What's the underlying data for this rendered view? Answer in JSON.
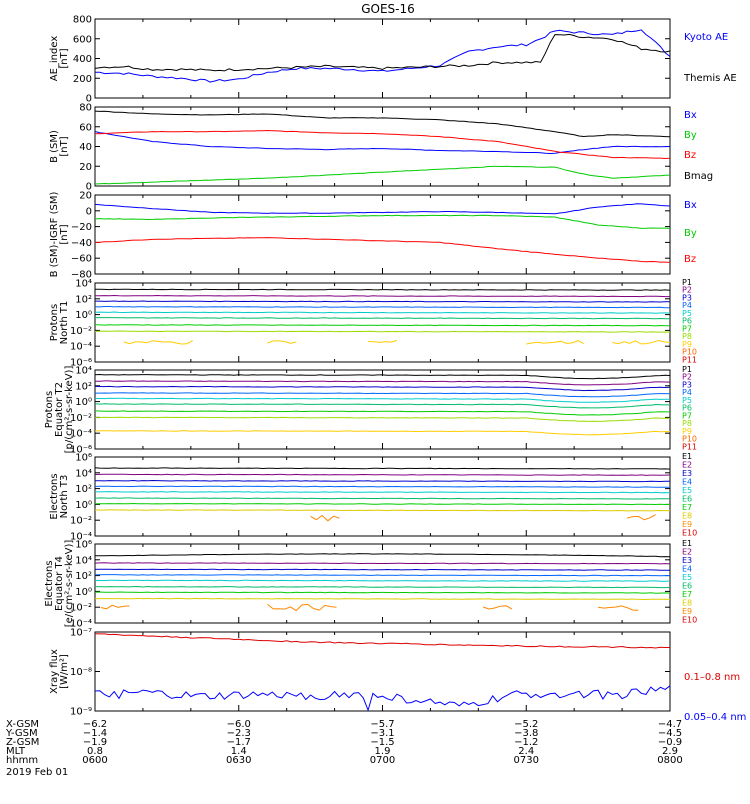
{
  "title": "GOES-16",
  "chart_data": [
    {
      "type": "line",
      "ylabel": [
        "AE_index",
        "[nT]"
      ],
      "ylim": [
        0,
        800
      ],
      "yticks": [
        "800",
        "600",
        "400",
        "200",
        "0"
      ],
      "series": [
        {
          "name": "Kyoto AE",
          "color": "#0000ff",
          "x_hours": [
            6.0,
            6.1,
            6.2,
            6.3,
            6.4,
            6.5,
            6.6,
            6.7,
            6.8,
            6.9,
            7.0,
            7.1,
            7.2,
            7.3,
            7.4,
            7.5,
            7.55,
            7.6,
            7.7,
            7.8,
            7.9,
            8.0
          ],
          "values": [
            260,
            250,
            220,
            200,
            170,
            190,
            260,
            300,
            300,
            290,
            270,
            300,
            330,
            470,
            520,
            540,
            600,
            680,
            660,
            640,
            700,
            420
          ]
        },
        {
          "name": "Themis AE",
          "color": "#000000",
          "x_hours": [
            6.0,
            6.1,
            6.2,
            6.3,
            6.4,
            6.5,
            6.6,
            6.7,
            6.8,
            6.9,
            7.0,
            7.1,
            7.2,
            7.3,
            7.4,
            7.5,
            7.55,
            7.6,
            7.7,
            7.8,
            7.9,
            8.0
          ],
          "values": [
            310,
            320,
            290,
            290,
            280,
            290,
            300,
            310,
            320,
            310,
            300,
            310,
            320,
            330,
            360,
            360,
            360,
            650,
            620,
            600,
            500,
            470
          ]
        }
      ]
    },
    {
      "type": "line",
      "ylabel": [
        "B (SM)",
        "[nT]"
      ],
      "ylim": [
        0,
        80
      ],
      "yticks": [
        "80",
        "60",
        "40",
        "20",
        "0"
      ],
      "series": [
        {
          "name": "Bx",
          "color": "#0000ff",
          "x_hours": [
            6.0,
            6.2,
            6.4,
            6.6,
            6.8,
            7.0,
            7.2,
            7.4,
            7.6,
            7.7,
            7.8,
            8.0
          ],
          "values": [
            55,
            45,
            40,
            38,
            37,
            38,
            36,
            35,
            33,
            37,
            40,
            40
          ]
        },
        {
          "name": "By",
          "color": "#00cc00",
          "x_hours": [
            6.0,
            6.2,
            6.4,
            6.6,
            6.8,
            7.0,
            7.2,
            7.4,
            7.6,
            7.7,
            7.8,
            8.0
          ],
          "values": [
            2,
            4,
            6,
            8,
            11,
            14,
            17,
            20,
            19,
            12,
            8,
            11
          ]
        },
        {
          "name": "Bz",
          "color": "#ff0000",
          "x_hours": [
            6.0,
            6.2,
            6.4,
            6.6,
            6.8,
            7.0,
            7.2,
            7.4,
            7.6,
            7.7,
            7.8,
            8.0
          ],
          "values": [
            53,
            55,
            55,
            56,
            54,
            53,
            50,
            45,
            35,
            32,
            29,
            28
          ]
        },
        {
          "name": "Bmag",
          "color": "#000000",
          "x_hours": [
            6.0,
            6.2,
            6.4,
            6.6,
            6.8,
            7.0,
            7.2,
            7.4,
            7.6,
            7.7,
            7.8,
            8.0
          ],
          "values": [
            76,
            73,
            72,
            73,
            69,
            69,
            67,
            63,
            55,
            50,
            52,
            50
          ]
        }
      ]
    },
    {
      "type": "line",
      "ylabel": [
        "B (SM)-IGRF (SM)",
        "[nT]"
      ],
      "ylim": [
        -80,
        20
      ],
      "yticks": [
        "20",
        "0",
        "−20",
        "−40",
        "−60",
        "−80"
      ],
      "series": [
        {
          "name": "Bx",
          "color": "#0000ff",
          "x_hours": [
            6.0,
            6.2,
            6.4,
            6.6,
            6.8,
            7.0,
            7.2,
            7.4,
            7.6,
            7.75,
            7.9,
            8.0
          ],
          "values": [
            8,
            3,
            -2,
            -3,
            -3,
            -2,
            -1,
            -2,
            -4,
            5,
            9,
            6
          ]
        },
        {
          "name": "By",
          "color": "#00cc00",
          "x_hours": [
            6.0,
            6.2,
            6.4,
            6.6,
            6.8,
            7.0,
            7.2,
            7.4,
            7.6,
            7.75,
            7.9,
            8.0
          ],
          "values": [
            -10,
            -11,
            -9,
            -8,
            -7,
            -6,
            -6,
            -6,
            -8,
            -18,
            -22,
            -22
          ]
        },
        {
          "name": "Bz",
          "color": "#ff0000",
          "x_hours": [
            6.0,
            6.2,
            6.4,
            6.6,
            6.8,
            7.0,
            7.2,
            7.4,
            7.6,
            7.75,
            7.9,
            8.0
          ],
          "values": [
            -40,
            -36,
            -35,
            -34,
            -36,
            -38,
            -40,
            -48,
            -55,
            -60,
            -64,
            -65
          ]
        }
      ]
    },
    {
      "type": "line",
      "log": true,
      "ylabel": [
        "Protons",
        "North T1"
      ],
      "ylim_exp": [
        -6,
        4
      ],
      "yticks": [
        "10⁴",
        "10²",
        "10⁰",
        "10⁻²",
        "10⁻⁴",
        "10⁻⁶"
      ],
      "series_names": [
        "P1",
        "P2",
        "P3",
        "P4",
        "P5",
        "P6",
        "P7",
        "P8",
        "P9",
        "P10",
        "P11"
      ],
      "colors": [
        "#000000",
        "#800080",
        "#0000cc",
        "#0066ff",
        "#00cccc",
        "#00bb66",
        "#00cc00",
        "#99dd00",
        "#ffcc00",
        "#ff6600",
        "#dd0000"
      ],
      "levels_log10": [
        3.2,
        2.4,
        1.7,
        1.0,
        0.3,
        -0.4,
        -1.3,
        -2.1,
        -3.5,
        null,
        null
      ]
    },
    {
      "type": "line",
      "log": true,
      "ylabel": [
        "Protons",
        "Equator T2",
        "[p/(cm²-s-sr-keV)]"
      ],
      "ylim_exp": [
        -6,
        4
      ],
      "yticks": [
        "10⁴",
        "10²",
        "10⁰",
        "10⁻²",
        "10⁻⁴",
        "10⁻⁶"
      ],
      "series_names": [
        "P1",
        "P2",
        "P3",
        "P4",
        "P5",
        "P6",
        "P7",
        "P8",
        "P9",
        "P10",
        "P11"
      ],
      "colors": [
        "#000000",
        "#800080",
        "#0000cc",
        "#0066ff",
        "#00cccc",
        "#00bb66",
        "#00cc00",
        "#99dd00",
        "#ffcc00",
        "#ff6600",
        "#dd0000"
      ],
      "levels_log10": [
        3.4,
        2.6,
        1.9,
        1.1,
        0.4,
        -0.3,
        -1.2,
        -2.0,
        -3.7,
        null,
        null
      ]
    },
    {
      "type": "line",
      "log": true,
      "ylabel": [
        "Electrons",
        "North T3"
      ],
      "ylim_exp": [
        -4,
        6
      ],
      "yticks": [
        "10⁶",
        "10⁴",
        "10²",
        "10⁰",
        "10⁻²",
        "10⁻⁴"
      ],
      "series_names": [
        "E1",
        "E2",
        "E3",
        "E4",
        "E5",
        "E6",
        "E7",
        "E8",
        "E9",
        "E10"
      ],
      "colors": [
        "#000000",
        "#800080",
        "#0000cc",
        "#0066ff",
        "#00cccc",
        "#00bb66",
        "#00cc00",
        "#ddcc00",
        "#ff8800",
        "#dd0000"
      ],
      "levels_log10": [
        4.6,
        3.8,
        3.0,
        2.3,
        1.6,
        0.8,
        0.1,
        -0.7,
        -1.7,
        null
      ]
    },
    {
      "type": "line",
      "log": true,
      "ylabel": [
        "Electrons",
        "Equator T4",
        "[e/(cm²-s-sr-keV)]"
      ],
      "ylim_exp": [
        -4,
        6
      ],
      "yticks": [
        "10⁶",
        "10⁴",
        "10²",
        "10⁰",
        "10⁻²",
        "10⁻⁴"
      ],
      "series_names": [
        "E1",
        "E2",
        "E3",
        "E4",
        "E5",
        "E6",
        "E7",
        "E8",
        "E9",
        "E10"
      ],
      "colors": [
        "#000000",
        "#800080",
        "#0000cc",
        "#0066ff",
        "#00cccc",
        "#00bb66",
        "#00cc00",
        "#ddcc00",
        "#ff8800",
        "#dd0000"
      ],
      "levels_log10": [
        4.5,
        3.6,
        2.8,
        2.1,
        1.4,
        0.6,
        -0.1,
        -0.9,
        -2.0,
        null
      ]
    },
    {
      "type": "line",
      "log": true,
      "ylabel": [
        "Xray flux",
        "[W/m²]"
      ],
      "ylim_exp": [
        -9,
        -7
      ],
      "yticks": [
        "10⁻⁷",
        "10⁻⁸",
        "10⁻⁹"
      ],
      "series": [
        {
          "name": "0.1–0.8 nm",
          "color": "#dd0000",
          "log10_values": [
            -7.05,
            -7.1,
            -7.15,
            -7.2,
            -7.25,
            -7.28,
            -7.3,
            -7.33,
            -7.35,
            -7.37,
            -7.38,
            -7.4
          ]
        },
        {
          "name": "0.05–0.4 nm",
          "color": "#0000ff",
          "log10_values": [
            -8.6,
            -8.55,
            -8.65,
            -8.6,
            -8.62,
            -8.58,
            -8.7,
            -8.9,
            -8.6,
            -8.55,
            -8.6,
            -8.45
          ]
        }
      ]
    }
  ],
  "x_axis": {
    "rows": [
      {
        "label": "X-GSM",
        "values": [
          "−6.2",
          "−6.0",
          "−5.7",
          "−5.2",
          "−4.7"
        ]
      },
      {
        "label": "Y-GSM",
        "values": [
          "−1.4",
          "−2.3",
          "−3.1",
          "−3.8",
          "−4.5"
        ]
      },
      {
        "label": "Z-GSM",
        "values": [
          "−1.9",
          "−1.7",
          "−1.5",
          "−1.2",
          "−0.9"
        ]
      },
      {
        "label": "MLT",
        "values": [
          "0.8",
          "1.4",
          "1.9",
          "2.4",
          "2.9"
        ]
      },
      {
        "label": "hhmm",
        "values": [
          "0600",
          "0630",
          "0700",
          "0730",
          "0800"
        ]
      }
    ],
    "date": "2019 Feb 01"
  }
}
